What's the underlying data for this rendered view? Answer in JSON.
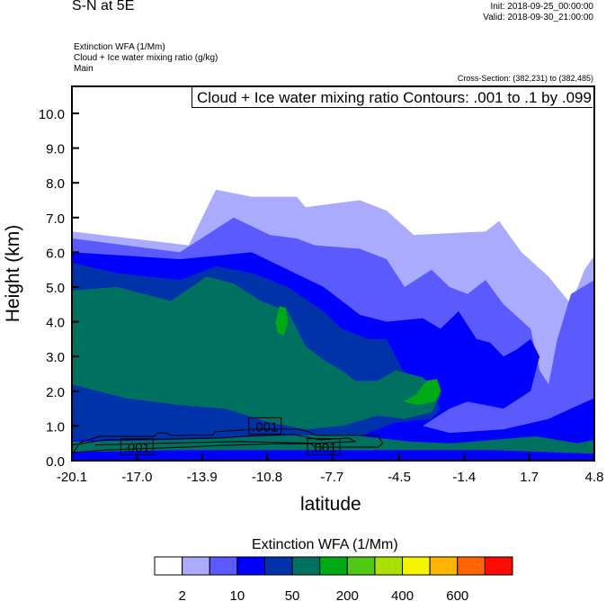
{
  "header": {
    "title": "S-N at 5E",
    "init": "Init: 2018-09-25_00:00:00",
    "valid": "Valid: 2018-09-30_21:00:00",
    "subtitles": [
      "Extinction WFA   (1/Mm)",
      "Cloud + Ice water mixing ratio   (g/kg)",
      "Main"
    ],
    "cross_section": "Cross-Section: (382,231) to (382,485)"
  },
  "chart_data": {
    "type": "heatmap",
    "title": "S-N at 5E",
    "xlabel": "latitude",
    "ylabel": "Height (km)",
    "xlim": [
      -20.1,
      4.8
    ],
    "ylim": [
      0,
      10.8
    ],
    "xticks": [
      -20.1,
      -17.0,
      -13.9,
      -10.8,
      -7.7,
      -4.5,
      -1.4,
      1.7,
      4.8
    ],
    "xtick_labels": [
      "-20.1",
      "-17.0",
      "-13.9",
      "-10.8",
      "-7.7",
      "-4.5",
      "-1.4",
      "1.7",
      "4.8"
    ],
    "yticks": [
      0,
      1,
      2,
      3,
      4,
      5,
      6,
      7,
      8,
      9,
      10
    ],
    "ytick_labels": [
      "0.0",
      "1.0",
      "2.0",
      "3.0",
      "4.0",
      "5.0",
      "6.0",
      "7.0",
      "8.0",
      "9.0",
      "10.0"
    ],
    "legend_text": "Cloud + Ice water mixing ratio Contours: .001 to .1 by .099",
    "colorbar": {
      "title": "Extinction WFA  (1/Mm)",
      "colors": [
        "#ffffff",
        "#aaaaff",
        "#5a5aff",
        "#0000ff",
        "#0033aa",
        "#007060",
        "#00aa14",
        "#50c814",
        "#aae100",
        "#f5f500",
        "#ffb400",
        "#ff6400",
        "#ff0a00"
      ],
      "labels": [
        "2",
        "10",
        "50",
        "200",
        "400",
        "600"
      ]
    },
    "filled_regions": [
      {
        "level": 1,
        "points": [
          [
            -20.1,
            0
          ],
          [
            -20.1,
            6.6
          ],
          [
            -14.53,
            6.2
          ],
          [
            -13.24,
            7.8
          ],
          [
            -11.53,
            7.6
          ],
          [
            -9.39,
            7.6
          ],
          [
            -8.96,
            7.3
          ],
          [
            -6.38,
            7.5
          ],
          [
            -5.1,
            7.2
          ],
          [
            -3.81,
            6.5
          ],
          [
            -0.38,
            6.6
          ],
          [
            0.26,
            6.9
          ],
          [
            1.33,
            6.0
          ],
          [
            2.62,
            5.3
          ],
          [
            3.69,
            4.5
          ],
          [
            4.33,
            5.5
          ],
          [
            4.8,
            5.9
          ],
          [
            4.8,
            0
          ]
        ]
      },
      {
        "level": 2,
        "points": [
          [
            -20.1,
            0
          ],
          [
            -20.1,
            6.4
          ],
          [
            -14.96,
            6.0
          ],
          [
            -13.67,
            6.5
          ],
          [
            -12.39,
            7.0
          ],
          [
            -10.67,
            6.5
          ],
          [
            -9.39,
            6.4
          ],
          [
            -8.53,
            6.2
          ],
          [
            -6.38,
            6.1
          ],
          [
            -5.1,
            5.8
          ],
          [
            -4.24,
            5.0
          ],
          [
            -2.96,
            5.5
          ],
          [
            -2.1,
            5.0
          ],
          [
            -1.24,
            4.8
          ],
          [
            -0.38,
            5.2
          ],
          [
            0.47,
            4.5
          ],
          [
            1.76,
            3.8
          ],
          [
            2.19,
            2.6
          ],
          [
            2.62,
            2.2
          ],
          [
            3.04,
            3.5
          ],
          [
            3.69,
            4.8
          ],
          [
            4.8,
            5.2
          ],
          [
            4.8,
            0
          ]
        ]
      },
      {
        "level": 3,
        "points": [
          [
            -20.1,
            0
          ],
          [
            -20.1,
            6.0
          ],
          [
            -14.96,
            5.8
          ],
          [
            -13.24,
            5.9
          ],
          [
            -11.53,
            6.0
          ],
          [
            -9.81,
            5.5
          ],
          [
            -8.1,
            5.0
          ],
          [
            -6.38,
            4.2
          ],
          [
            -5.1,
            4.0
          ],
          [
            -3.38,
            4.1
          ],
          [
            -2.53,
            3.8
          ],
          [
            -1.67,
            4.3
          ],
          [
            -0.81,
            3.5
          ],
          [
            -0.17,
            3.4
          ],
          [
            0.47,
            3.0
          ],
          [
            1.1,
            3.2
          ],
          [
            1.76,
            3.5
          ],
          [
            2.19,
            3.0
          ],
          [
            1.76,
            2.0
          ],
          [
            0.47,
            1.5
          ],
          [
            -1.24,
            1.7
          ],
          [
            -2.1,
            1.5
          ],
          [
            -3.38,
            1.0
          ],
          [
            -2.1,
            0.8
          ],
          [
            0.47,
            0.9
          ],
          [
            2.62,
            1.2
          ],
          [
            3.69,
            1.5
          ],
          [
            4.8,
            1.8
          ],
          [
            4.8,
            0
          ]
        ]
      },
      {
        "level": 4,
        "points": [
          [
            -20.1,
            0.6
          ],
          [
            -20.1,
            5.7
          ],
          [
            -17.96,
            5.4
          ],
          [
            -14.96,
            5.2
          ],
          [
            -13.24,
            5.6
          ],
          [
            -11.53,
            5.4
          ],
          [
            -9.81,
            5.0
          ],
          [
            -8.1,
            4.3
          ],
          [
            -7.24,
            3.8
          ],
          [
            -5.96,
            3.5
          ],
          [
            -5.1,
            3.5
          ],
          [
            -4.24,
            2.5
          ],
          [
            -2.96,
            2.0
          ],
          [
            -2.53,
            1.5
          ],
          [
            -2.96,
            1.2
          ],
          [
            -4.67,
            1.1
          ],
          [
            -5.53,
            0.9
          ],
          [
            -6.38,
            0.7
          ],
          [
            -10.67,
            0.6
          ]
        ]
      },
      {
        "level": 5,
        "points": [
          [
            -20.1,
            2.2
          ],
          [
            -20.1,
            4.9
          ],
          [
            -17.96,
            5.0
          ],
          [
            -16.67,
            4.8
          ],
          [
            -15.39,
            4.6
          ],
          [
            -13.67,
            5.3
          ],
          [
            -12.39,
            5.1
          ],
          [
            -11.1,
            4.6
          ],
          [
            -9.81,
            4.3
          ],
          [
            -8.96,
            3.3
          ],
          [
            -8.1,
            2.9
          ],
          [
            -7.24,
            2.6
          ],
          [
            -6.6,
            2.3
          ],
          [
            -5.53,
            2.3
          ],
          [
            -4.67,
            2.6
          ],
          [
            -3.38,
            2.4
          ],
          [
            -2.53,
            1.9
          ],
          [
            -2.96,
            1.4
          ],
          [
            -4.24,
            1.2
          ],
          [
            -5.53,
            1.3
          ],
          [
            -7.24,
            1.0
          ],
          [
            -8.96,
            0.9
          ],
          [
            -10.67,
            1.1
          ],
          [
            -12.82,
            1.5
          ],
          [
            -14.96,
            1.6
          ],
          [
            -17.53,
            1.8
          ]
        ]
      },
      {
        "level": 5,
        "points": [
          [
            -20.1,
            0.25
          ],
          [
            -20.1,
            0.55
          ],
          [
            -15,
            0.6
          ],
          [
            -10,
            0.72
          ],
          [
            -7,
            0.75
          ],
          [
            -4,
            0.55
          ],
          [
            -2,
            0.5
          ],
          [
            0,
            0.6
          ],
          [
            2,
            0.7
          ],
          [
            3,
            0.6
          ],
          [
            4,
            0.5
          ],
          [
            4.8,
            0.6
          ],
          [
            4.8,
            0.2
          ],
          [
            0,
            0.3
          ],
          [
            -5,
            0.3
          ],
          [
            -15,
            0.3
          ]
        ]
      },
      {
        "level": 6,
        "points": [
          [
            -10.4,
            4.0
          ],
          [
            -10.2,
            4.45
          ],
          [
            -9.9,
            4.4
          ],
          [
            -9.8,
            4.0
          ],
          [
            -10.0,
            3.6
          ],
          [
            -10.3,
            3.7
          ]
        ]
      },
      {
        "level": 6,
        "points": [
          [
            -4.3,
            1.7
          ],
          [
            -3.7,
            1.9
          ],
          [
            -3.2,
            2.3
          ],
          [
            -2.7,
            2.35
          ],
          [
            -2.5,
            2.0
          ],
          [
            -2.8,
            1.7
          ],
          [
            -3.6,
            1.6
          ]
        ]
      }
    ],
    "contours": [
      {
        "level": ".001",
        "points": [
          [
            -20.1,
            0.18
          ],
          [
            -19.7,
            0.52
          ],
          [
            -18.8,
            0.7
          ],
          [
            -16.2,
            0.7
          ],
          [
            -16.0,
            0.8
          ],
          [
            -15.6,
            0.8
          ],
          [
            -15.4,
            0.73
          ],
          [
            -13.4,
            0.73
          ],
          [
            -13.3,
            0.83
          ],
          [
            -11.3,
            0.91
          ],
          [
            -9.4,
            0.91
          ],
          [
            -8.8,
            0.83
          ],
          [
            -8.5,
            0.73
          ],
          [
            -5.5,
            0.73
          ],
          [
            -5.3,
            0.49
          ],
          [
            -5.5,
            0.39
          ],
          [
            -8.5,
            0.39
          ],
          [
            -8.7,
            0.49
          ],
          [
            -10.3,
            0.49
          ],
          [
            -12.9,
            0.44
          ],
          [
            -14.7,
            0.39
          ],
          [
            -18.4,
            0.31
          ],
          [
            -20.1,
            0.23
          ]
        ]
      },
      {
        "level": ".001",
        "points": [
          [
            -20.1,
            0.45
          ],
          [
            -18.5,
            0.6
          ],
          [
            -16.0,
            0.62
          ],
          [
            -13.0,
            0.65
          ],
          [
            -11.5,
            0.72
          ],
          [
            -9.5,
            0.75
          ],
          [
            -8.3,
            0.6
          ],
          [
            -6.9,
            0.65
          ],
          [
            -6.6,
            0.55
          ],
          [
            -8.4,
            0.5
          ],
          [
            -12,
            0.55
          ],
          [
            -16,
            0.5
          ],
          [
            -19,
            0.45
          ]
        ]
      }
    ],
    "contour_labels": [
      {
        "text": ".001",
        "x": -17.0,
        "y": 0.4
      },
      {
        "text": ".001",
        "x": -10.9,
        "y": 1.0
      },
      {
        "text": ".001",
        "x": -8.1,
        "y": 0.4
      }
    ]
  }
}
